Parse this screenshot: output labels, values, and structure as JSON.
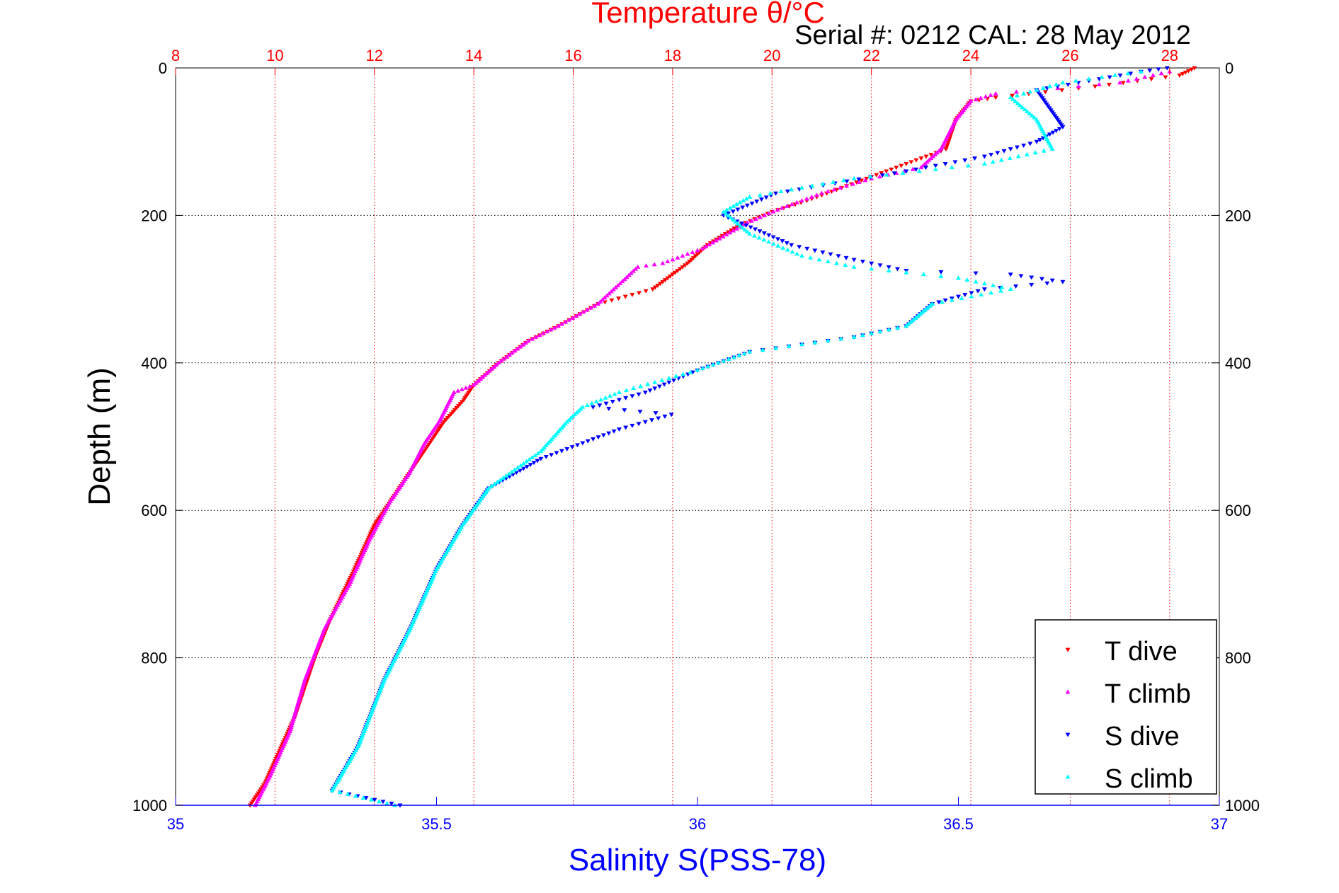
{
  "chart_data": {
    "type": "scatter",
    "title": "Temperature θ/°C",
    "subtitle": "Serial #: 0212  CAL: 28 May 2012",
    "xlabel": "Salinity S(PSS-78)",
    "ylabel": "Depth (m)",
    "top_axis": {
      "range": [
        8,
        29
      ],
      "ticks": [
        "8",
        "10",
        "12",
        "14",
        "16",
        "18",
        "20",
        "22",
        "24",
        "26",
        "28"
      ],
      "color": "#ff0000"
    },
    "bottom_axis": {
      "range": [
        35,
        37
      ],
      "ticks": [
        "35",
        "35.5",
        "36",
        "36.5",
        "37"
      ],
      "color": "#0000ff"
    },
    "y_axis": {
      "range": [
        0,
        1000
      ],
      "reversed": true,
      "ticks": [
        "0",
        "200",
        "400",
        "600",
        "800",
        "1000"
      ]
    },
    "grid": true,
    "legend_position": "bottom-right",
    "series": [
      {
        "name": "T dive",
        "axis": "temperature",
        "color": "#ff0000",
        "marker": "triangle-down",
        "points": [
          [
            28.5,
            0
          ],
          [
            28.2,
            10
          ],
          [
            26.5,
            25
          ],
          [
            24.5,
            40
          ],
          [
            24.0,
            45
          ],
          [
            23.7,
            70
          ],
          [
            23.5,
            110
          ],
          [
            22.9,
            125
          ],
          [
            22.3,
            140
          ],
          [
            21.5,
            160
          ],
          [
            20.7,
            180
          ],
          [
            20.0,
            195
          ],
          [
            19.3,
            215
          ],
          [
            18.7,
            240
          ],
          [
            18.3,
            265
          ],
          [
            17.9,
            285
          ],
          [
            17.6,
            300
          ],
          [
            16.5,
            320
          ],
          [
            15.7,
            350
          ],
          [
            15.1,
            370
          ],
          [
            14.5,
            400
          ],
          [
            14.0,
            430
          ],
          [
            13.8,
            450
          ],
          [
            13.4,
            480
          ],
          [
            13.2,
            500
          ],
          [
            12.8,
            540
          ],
          [
            12.4,
            580
          ],
          [
            12.0,
            620
          ],
          [
            11.6,
            680
          ],
          [
            11.1,
            750
          ],
          [
            10.8,
            800
          ],
          [
            10.4,
            880
          ],
          [
            10.0,
            940
          ],
          [
            9.8,
            970
          ],
          [
            9.5,
            1000
          ]
        ]
      },
      {
        "name": "T climb",
        "axis": "temperature",
        "color": "#ff00ff",
        "marker": "triangle-up",
        "points": [
          [
            28.0,
            5
          ],
          [
            27.0,
            20
          ],
          [
            24.5,
            35
          ],
          [
            24.0,
            45
          ],
          [
            23.7,
            70
          ],
          [
            23.4,
            110
          ],
          [
            23.0,
            135
          ],
          [
            22.0,
            150
          ],
          [
            21.0,
            170
          ],
          [
            20.2,
            190
          ],
          [
            19.5,
            210
          ],
          [
            18.6,
            245
          ],
          [
            17.8,
            265
          ],
          [
            17.3,
            270
          ],
          [
            16.5,
            320
          ],
          [
            15.7,
            350
          ],
          [
            15.1,
            370
          ],
          [
            14.5,
            400
          ],
          [
            14.0,
            430
          ],
          [
            13.6,
            440
          ],
          [
            13.3,
            480
          ],
          [
            13.0,
            510
          ],
          [
            12.7,
            550
          ],
          [
            12.3,
            590
          ],
          [
            11.9,
            640
          ],
          [
            11.5,
            700
          ],
          [
            11.0,
            760
          ],
          [
            10.6,
            830
          ],
          [
            10.3,
            900
          ],
          [
            9.9,
            960
          ],
          [
            9.6,
            1000
          ]
        ]
      },
      {
        "name": "S dive",
        "axis": "salinity",
        "color": "#0000ff",
        "marker": "triangle-down",
        "points": [
          [
            36.9,
            0
          ],
          [
            36.85,
            5
          ],
          [
            36.65,
            30
          ],
          [
            36.68,
            60
          ],
          [
            36.7,
            80
          ],
          [
            36.65,
            100
          ],
          [
            36.55,
            120
          ],
          [
            36.4,
            140
          ],
          [
            36.15,
            170
          ],
          [
            36.05,
            200
          ],
          [
            36.18,
            240
          ],
          [
            36.3,
            260
          ],
          [
            36.4,
            275
          ],
          [
            36.6,
            280
          ],
          [
            36.7,
            290
          ],
          [
            36.55,
            300
          ],
          [
            36.45,
            320
          ],
          [
            36.4,
            350
          ],
          [
            36.3,
            365
          ],
          [
            36.1,
            385
          ],
          [
            36.0,
            410
          ],
          [
            35.9,
            440
          ],
          [
            35.8,
            460
          ],
          [
            35.95,
            470
          ],
          [
            35.85,
            490
          ],
          [
            35.7,
            530
          ],
          [
            35.6,
            570
          ],
          [
            35.55,
            620
          ],
          [
            35.5,
            680
          ],
          [
            35.45,
            760
          ],
          [
            35.4,
            830
          ],
          [
            35.35,
            920
          ],
          [
            35.3,
            980
          ],
          [
            35.43,
            1000
          ]
        ]
      },
      {
        "name": "S climb",
        "axis": "salinity",
        "color": "#00ffff",
        "marker": "triangle-up",
        "points": [
          [
            36.85,
            5
          ],
          [
            36.7,
            20
          ],
          [
            36.6,
            40
          ],
          [
            36.65,
            70
          ],
          [
            36.68,
            110
          ],
          [
            36.55,
            130
          ],
          [
            36.3,
            150
          ],
          [
            36.1,
            175
          ],
          [
            36.05,
            195
          ],
          [
            36.1,
            225
          ],
          [
            36.2,
            255
          ],
          [
            36.3,
            270
          ],
          [
            36.5,
            285
          ],
          [
            36.6,
            300
          ],
          [
            36.45,
            320
          ],
          [
            36.4,
            350
          ],
          [
            36.3,
            365
          ],
          [
            36.1,
            385
          ],
          [
            36.0,
            410
          ],
          [
            35.85,
            440
          ],
          [
            35.78,
            460
          ],
          [
            35.75,
            480
          ],
          [
            35.7,
            520
          ],
          [
            35.6,
            570
          ],
          [
            35.55,
            620
          ],
          [
            35.5,
            680
          ],
          [
            35.45,
            760
          ],
          [
            35.4,
            830
          ],
          [
            35.35,
            920
          ],
          [
            35.3,
            980
          ],
          [
            35.42,
            1000
          ]
        ]
      }
    ]
  }
}
